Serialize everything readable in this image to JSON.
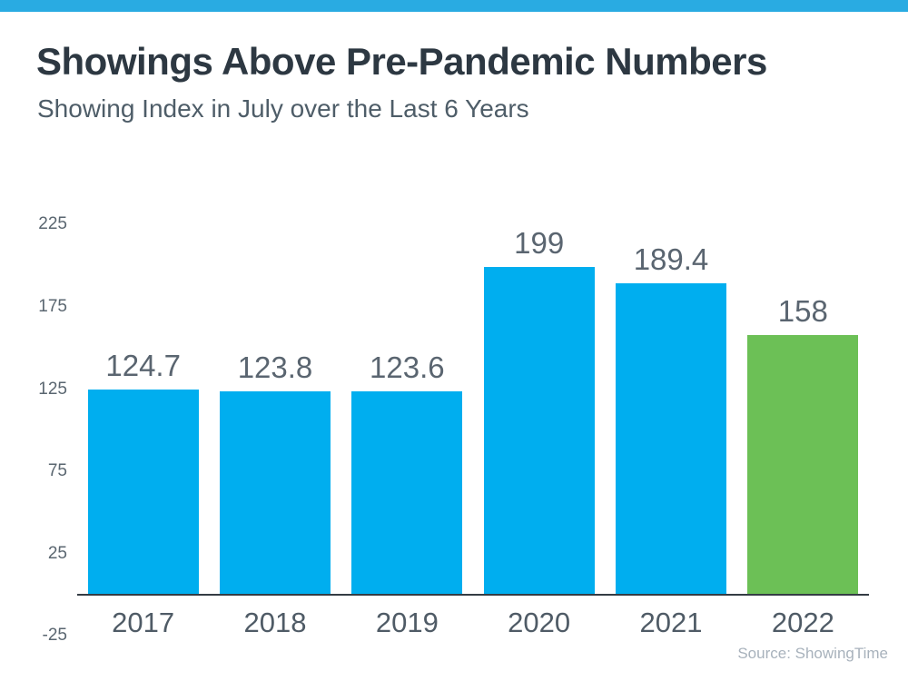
{
  "page": {
    "accent_bar_color": "#29ABE2",
    "background_color": "#FFFFFF"
  },
  "header": {
    "title": "Showings Above Pre-Pandemic Numbers",
    "subtitle": "Showing Index in July over the Last 6 Years"
  },
  "chart_data": {
    "type": "bar",
    "title": "Showings Above Pre-Pandemic Numbers",
    "subtitle": "Showing Index in July over the Last 6 Years",
    "categories": [
      "2017",
      "2018",
      "2019",
      "2020",
      "2021",
      "2022"
    ],
    "values": [
      124.7,
      123.8,
      123.6,
      199,
      189.4,
      158
    ],
    "value_labels": [
      "124.7",
      "123.8",
      "123.6",
      "199",
      "189.4",
      "158"
    ],
    "bar_colors": [
      "#00AEEF",
      "#00AEEF",
      "#00AEEF",
      "#00AEEF",
      "#00AEEF",
      "#6CC056"
    ],
    "yticks": [
      225,
      175,
      125,
      75,
      25,
      -25
    ],
    "ylim": [
      -25,
      237
    ],
    "xlabel": "",
    "ylabel": "",
    "grid": false,
    "legend": false,
    "axis_color": "#343C44",
    "tick_label_color": "#5A6670",
    "value_label_color": "#5A6570",
    "x_label_color": "#4F5B66"
  },
  "footer": {
    "source": "Source: ShowingTime"
  }
}
